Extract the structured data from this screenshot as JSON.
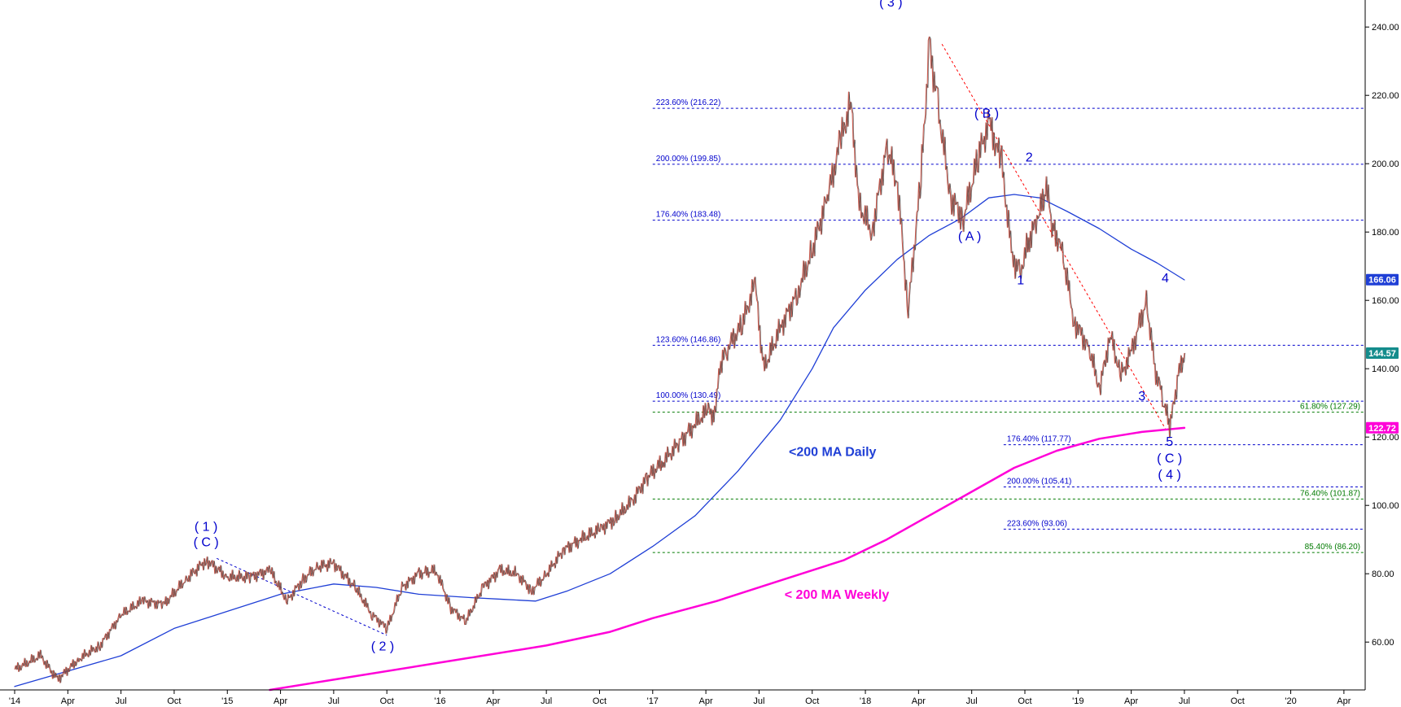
{
  "chart_data": {
    "type": "line",
    "title": "",
    "xlabel": "",
    "ylabel": "",
    "ylim": [
      46,
      246
    ],
    "y_ticks": [
      60,
      80,
      100,
      120,
      140,
      160,
      180,
      200,
      220,
      240
    ],
    "y_tick_labels": [
      "60.00",
      "80.00",
      "100.00",
      "120.00",
      "140.00",
      "160.00",
      "180.00",
      "200.00",
      "220.00",
      "240.00"
    ],
    "x_range": [
      2014.0,
      2020.35
    ],
    "x_ticks": [
      {
        "label": "'14",
        "t": 2014.0
      },
      {
        "label": "Apr",
        "t": 2014.25
      },
      {
        "label": "Jul",
        "t": 2014.5
      },
      {
        "label": "Oct",
        "t": 2014.75
      },
      {
        "label": "'15",
        "t": 2015.0
      },
      {
        "label": "Apr",
        "t": 2015.25
      },
      {
        "label": "Jul",
        "t": 2015.5
      },
      {
        "label": "Oct",
        "t": 2015.75
      },
      {
        "label": "'16",
        "t": 2016.0
      },
      {
        "label": "Apr",
        "t": 2016.25
      },
      {
        "label": "Jul",
        "t": 2016.5
      },
      {
        "label": "Oct",
        "t": 2016.75
      },
      {
        "label": "'17",
        "t": 2017.0
      },
      {
        "label": "Apr",
        "t": 2017.25
      },
      {
        "label": "Jul",
        "t": 2017.5
      },
      {
        "label": "Oct",
        "t": 2017.75
      },
      {
        "label": "'18",
        "t": 2018.0
      },
      {
        "label": "Apr",
        "t": 2018.25
      },
      {
        "label": "Jul",
        "t": 2018.5
      },
      {
        "label": "Oct",
        "t": 2018.75
      },
      {
        "label": "'19",
        "t": 2019.0
      },
      {
        "label": "Apr",
        "t": 2019.25
      },
      {
        "label": "Jul",
        "t": 2019.5
      },
      {
        "label": "Oct",
        "t": 2019.75
      },
      {
        "label": "'20",
        "t": 2020.0
      },
      {
        "label": "Apr",
        "t": 2020.25
      }
    ],
    "grid": false,
    "series": [
      {
        "kind": "price",
        "color": "#555555",
        "points": [
          [
            2014.0,
            52
          ],
          [
            2014.12,
            56
          ],
          [
            2014.2,
            49
          ],
          [
            2014.3,
            55
          ],
          [
            2014.4,
            59
          ],
          [
            2014.5,
            68
          ],
          [
            2014.6,
            72
          ],
          [
            2014.7,
            71
          ],
          [
            2014.8,
            78
          ],
          [
            2014.9,
            84
          ],
          [
            2015.0,
            79
          ],
          [
            2015.1,
            79
          ],
          [
            2015.2,
            81
          ],
          [
            2015.28,
            72
          ],
          [
            2015.35,
            78
          ],
          [
            2015.42,
            82
          ],
          [
            2015.5,
            83
          ],
          [
            2015.6,
            76
          ],
          [
            2015.68,
            68
          ],
          [
            2015.75,
            64
          ],
          [
            2015.82,
            76
          ],
          [
            2015.9,
            80
          ],
          [
            2015.98,
            81
          ],
          [
            2016.05,
            70
          ],
          [
            2016.12,
            66
          ],
          [
            2016.2,
            76
          ],
          [
            2016.28,
            81
          ],
          [
            2016.36,
            80
          ],
          [
            2016.43,
            75
          ],
          [
            2016.5,
            80
          ],
          [
            2016.58,
            87
          ],
          [
            2016.66,
            90
          ],
          [
            2016.75,
            93
          ],
          [
            2016.82,
            96
          ],
          [
            2016.9,
            101
          ],
          [
            2016.97,
            108
          ],
          [
            2017.05,
            113
          ],
          [
            2017.12,
            118
          ],
          [
            2017.2,
            124
          ],
          [
            2017.26,
            128
          ],
          [
            2017.29,
            126
          ],
          [
            2017.31,
            140
          ],
          [
            2017.35,
            146
          ],
          [
            2017.42,
            153
          ],
          [
            2017.48,
            165
          ],
          [
            2017.52,
            140
          ],
          [
            2017.6,
            152
          ],
          [
            2017.68,
            162
          ],
          [
            2017.75,
            175
          ],
          [
            2017.82,
            190
          ],
          [
            2017.88,
            206
          ],
          [
            2017.93,
            218
          ],
          [
            2017.97,
            188
          ],
          [
            2018.03,
            180
          ],
          [
            2018.1,
            205
          ],
          [
            2018.15,
            194
          ],
          [
            2018.2,
            157
          ],
          [
            2018.26,
            196
          ],
          [
            2018.3,
            235
          ],
          [
            2018.34,
            217
          ],
          [
            2018.4,
            190
          ],
          [
            2018.46,
            184
          ],
          [
            2018.53,
            202
          ],
          [
            2018.58,
            212
          ],
          [
            2018.64,
            200
          ],
          [
            2018.69,
            172
          ],
          [
            2018.73,
            169
          ],
          [
            2018.77,
            178
          ],
          [
            2018.81,
            184
          ],
          [
            2018.85,
            193
          ],
          [
            2018.88,
            181
          ],
          [
            2018.92,
            176
          ],
          [
            2018.98,
            154
          ],
          [
            2019.05,
            146
          ],
          [
            2019.1,
            134
          ],
          [
            2019.15,
            150
          ],
          [
            2019.2,
            138
          ],
          [
            2019.25,
            145
          ],
          [
            2019.32,
            160
          ],
          [
            2019.36,
            140
          ],
          [
            2019.4,
            131
          ],
          [
            2019.43,
            122.7
          ],
          [
            2019.47,
            138
          ],
          [
            2019.5,
            144.6
          ]
        ]
      },
      {
        "kind": "ma-daily",
        "name": "<200 MA Daily",
        "color": "#1f3fd6",
        "points": [
          [
            2014.0,
            47
          ],
          [
            2014.5,
            56
          ],
          [
            2014.75,
            64
          ],
          [
            2015.0,
            69
          ],
          [
            2015.25,
            74
          ],
          [
            2015.5,
            77
          ],
          [
            2015.7,
            76
          ],
          [
            2015.9,
            74
          ],
          [
            2016.15,
            73
          ],
          [
            2016.3,
            72.5
          ],
          [
            2016.45,
            72
          ],
          [
            2016.6,
            75
          ],
          [
            2016.8,
            80
          ],
          [
            2017.0,
            88
          ],
          [
            2017.2,
            97
          ],
          [
            2017.4,
            110
          ],
          [
            2017.6,
            125
          ],
          [
            2017.75,
            140
          ],
          [
            2017.85,
            152
          ],
          [
            2018.0,
            163
          ],
          [
            2018.15,
            172
          ],
          [
            2018.3,
            179
          ],
          [
            2018.45,
            184
          ],
          [
            2018.58,
            190
          ],
          [
            2018.7,
            191
          ],
          [
            2018.82,
            190
          ],
          [
            2018.95,
            186
          ],
          [
            2019.1,
            181
          ],
          [
            2019.25,
            175
          ],
          [
            2019.37,
            171
          ],
          [
            2019.5,
            166
          ]
        ]
      },
      {
        "kind": "ma-weekly",
        "name": "< 200 MA Weekly",
        "color": "#ff00d8",
        "points": [
          [
            2015.2,
            46
          ],
          [
            2015.5,
            49
          ],
          [
            2016.0,
            54
          ],
          [
            2016.5,
            59
          ],
          [
            2016.8,
            63
          ],
          [
            2017.0,
            67
          ],
          [
            2017.3,
            72
          ],
          [
            2017.6,
            78
          ],
          [
            2017.9,
            84
          ],
          [
            2018.1,
            90
          ],
          [
            2018.3,
            97
          ],
          [
            2018.5,
            104
          ],
          [
            2018.7,
            111
          ],
          [
            2018.9,
            116
          ],
          [
            2019.1,
            119.5
          ],
          [
            2019.3,
            121.5
          ],
          [
            2019.5,
            122.7
          ]
        ]
      }
    ],
    "levels": [
      {
        "label": "223.60% (216.22)",
        "value": 216.22,
        "color": "#0000cc",
        "x0": 2017.0,
        "x1": 2020.35
      },
      {
        "label": "200.00% (199.85)",
        "value": 199.85,
        "color": "#0000cc",
        "x0": 2017.0,
        "x1": 2020.35
      },
      {
        "label": "176.40% (183.48)",
        "value": 183.48,
        "color": "#0000cc",
        "x0": 2017.0,
        "x1": 2020.35
      },
      {
        "label": "123.60% (146.86)",
        "value": 146.86,
        "color": "#0000cc",
        "x0": 2017.0,
        "x1": 2020.35
      },
      {
        "label": "100.00% (130.49)",
        "value": 130.49,
        "color": "#0000cc",
        "x0": 2017.0,
        "x1": 2020.35
      },
      {
        "label": "61.80% (127.29)",
        "value": 127.29,
        "color": "#007a00",
        "x0": 2017.0,
        "x1": 2020.35
      },
      {
        "label": "176.40% (117.77)",
        "value": 117.77,
        "color": "#0000cc",
        "x0": 2018.65,
        "x1": 2020.35
      },
      {
        "label": "200.00% (105.41)",
        "value": 105.41,
        "color": "#0000cc",
        "x0": 2018.65,
        "x1": 2020.35
      },
      {
        "label": "76.40% (101.87)",
        "value": 101.87,
        "color": "#007a00",
        "x0": 2017.0,
        "x1": 2020.35
      },
      {
        "label": "223.60% (93.06)",
        "value": 93.06,
        "color": "#0000cc",
        "x0": 2018.65,
        "x1": 2020.35
      },
      {
        "label": "85.40% (86.20)",
        "value": 86.2,
        "color": "#007a00",
        "x0": 2017.0,
        "x1": 2020.35
      }
    ],
    "trendlines": [
      {
        "color": "#0000cc",
        "points": [
          [
            2014.95,
            84.5
          ],
          [
            2015.75,
            62
          ]
        ]
      },
      {
        "color": "#ff0000",
        "points": [
          [
            2018.36,
            235
          ],
          [
            2019.41,
            122.5
          ]
        ]
      }
    ],
    "annotations": [
      {
        "label": "( 1 )",
        "t": 2014.9,
        "v": 92.5,
        "color": "#0000cc"
      },
      {
        "label": "( C )",
        "t": 2014.9,
        "v": 88.0,
        "color": "#0000cc"
      },
      {
        "label": "( 2 )",
        "t": 2015.73,
        "v": 57.5,
        "color": "#0000cc"
      },
      {
        "label": "( 3 )",
        "t": 2018.12,
        "v": 246.0,
        "color": "#0000cc"
      },
      {
        "label": "( B )",
        "t": 2018.57,
        "v": 213.5,
        "color": "#0000cc"
      },
      {
        "label": "( A )",
        "t": 2018.49,
        "v": 177.5,
        "color": "#0000cc"
      },
      {
        "label": "2",
        "t": 2018.77,
        "v": 200.7,
        "color": "#0000cc"
      },
      {
        "label": "1",
        "t": 2018.73,
        "v": 164.7,
        "color": "#0000cc"
      },
      {
        "label": "4",
        "t": 2019.41,
        "v": 165.3,
        "color": "#0000cc"
      },
      {
        "label": "3",
        "t": 2019.3,
        "v": 130.8,
        "color": "#0000cc"
      },
      {
        "label": "5",
        "t": 2019.43,
        "v": 117.4,
        "color": "#0000cc"
      },
      {
        "label": "( C )",
        "t": 2019.43,
        "v": 112.5,
        "color": "#0000cc"
      },
      {
        "label": "( 4 )",
        "t": 2019.43,
        "v": 107.8,
        "color": "#0000cc"
      }
    ],
    "ma_labels": [
      {
        "label": "<200 MA Daily",
        "t": 2017.64,
        "v": 114.5,
        "color": "#1f3fd6"
      },
      {
        "label": "< 200 MA Weekly",
        "t": 2017.62,
        "v": 72.7,
        "color": "#ff00d8"
      }
    ],
    "price_tags": [
      {
        "label": "166.06",
        "value": 166.06,
        "color": "#1f3fd6"
      },
      {
        "label": "144.57",
        "value": 144.57,
        "color": "#148c8c"
      },
      {
        "label": "122.72",
        "value": 122.72,
        "color": "#ff00d8"
      }
    ]
  }
}
